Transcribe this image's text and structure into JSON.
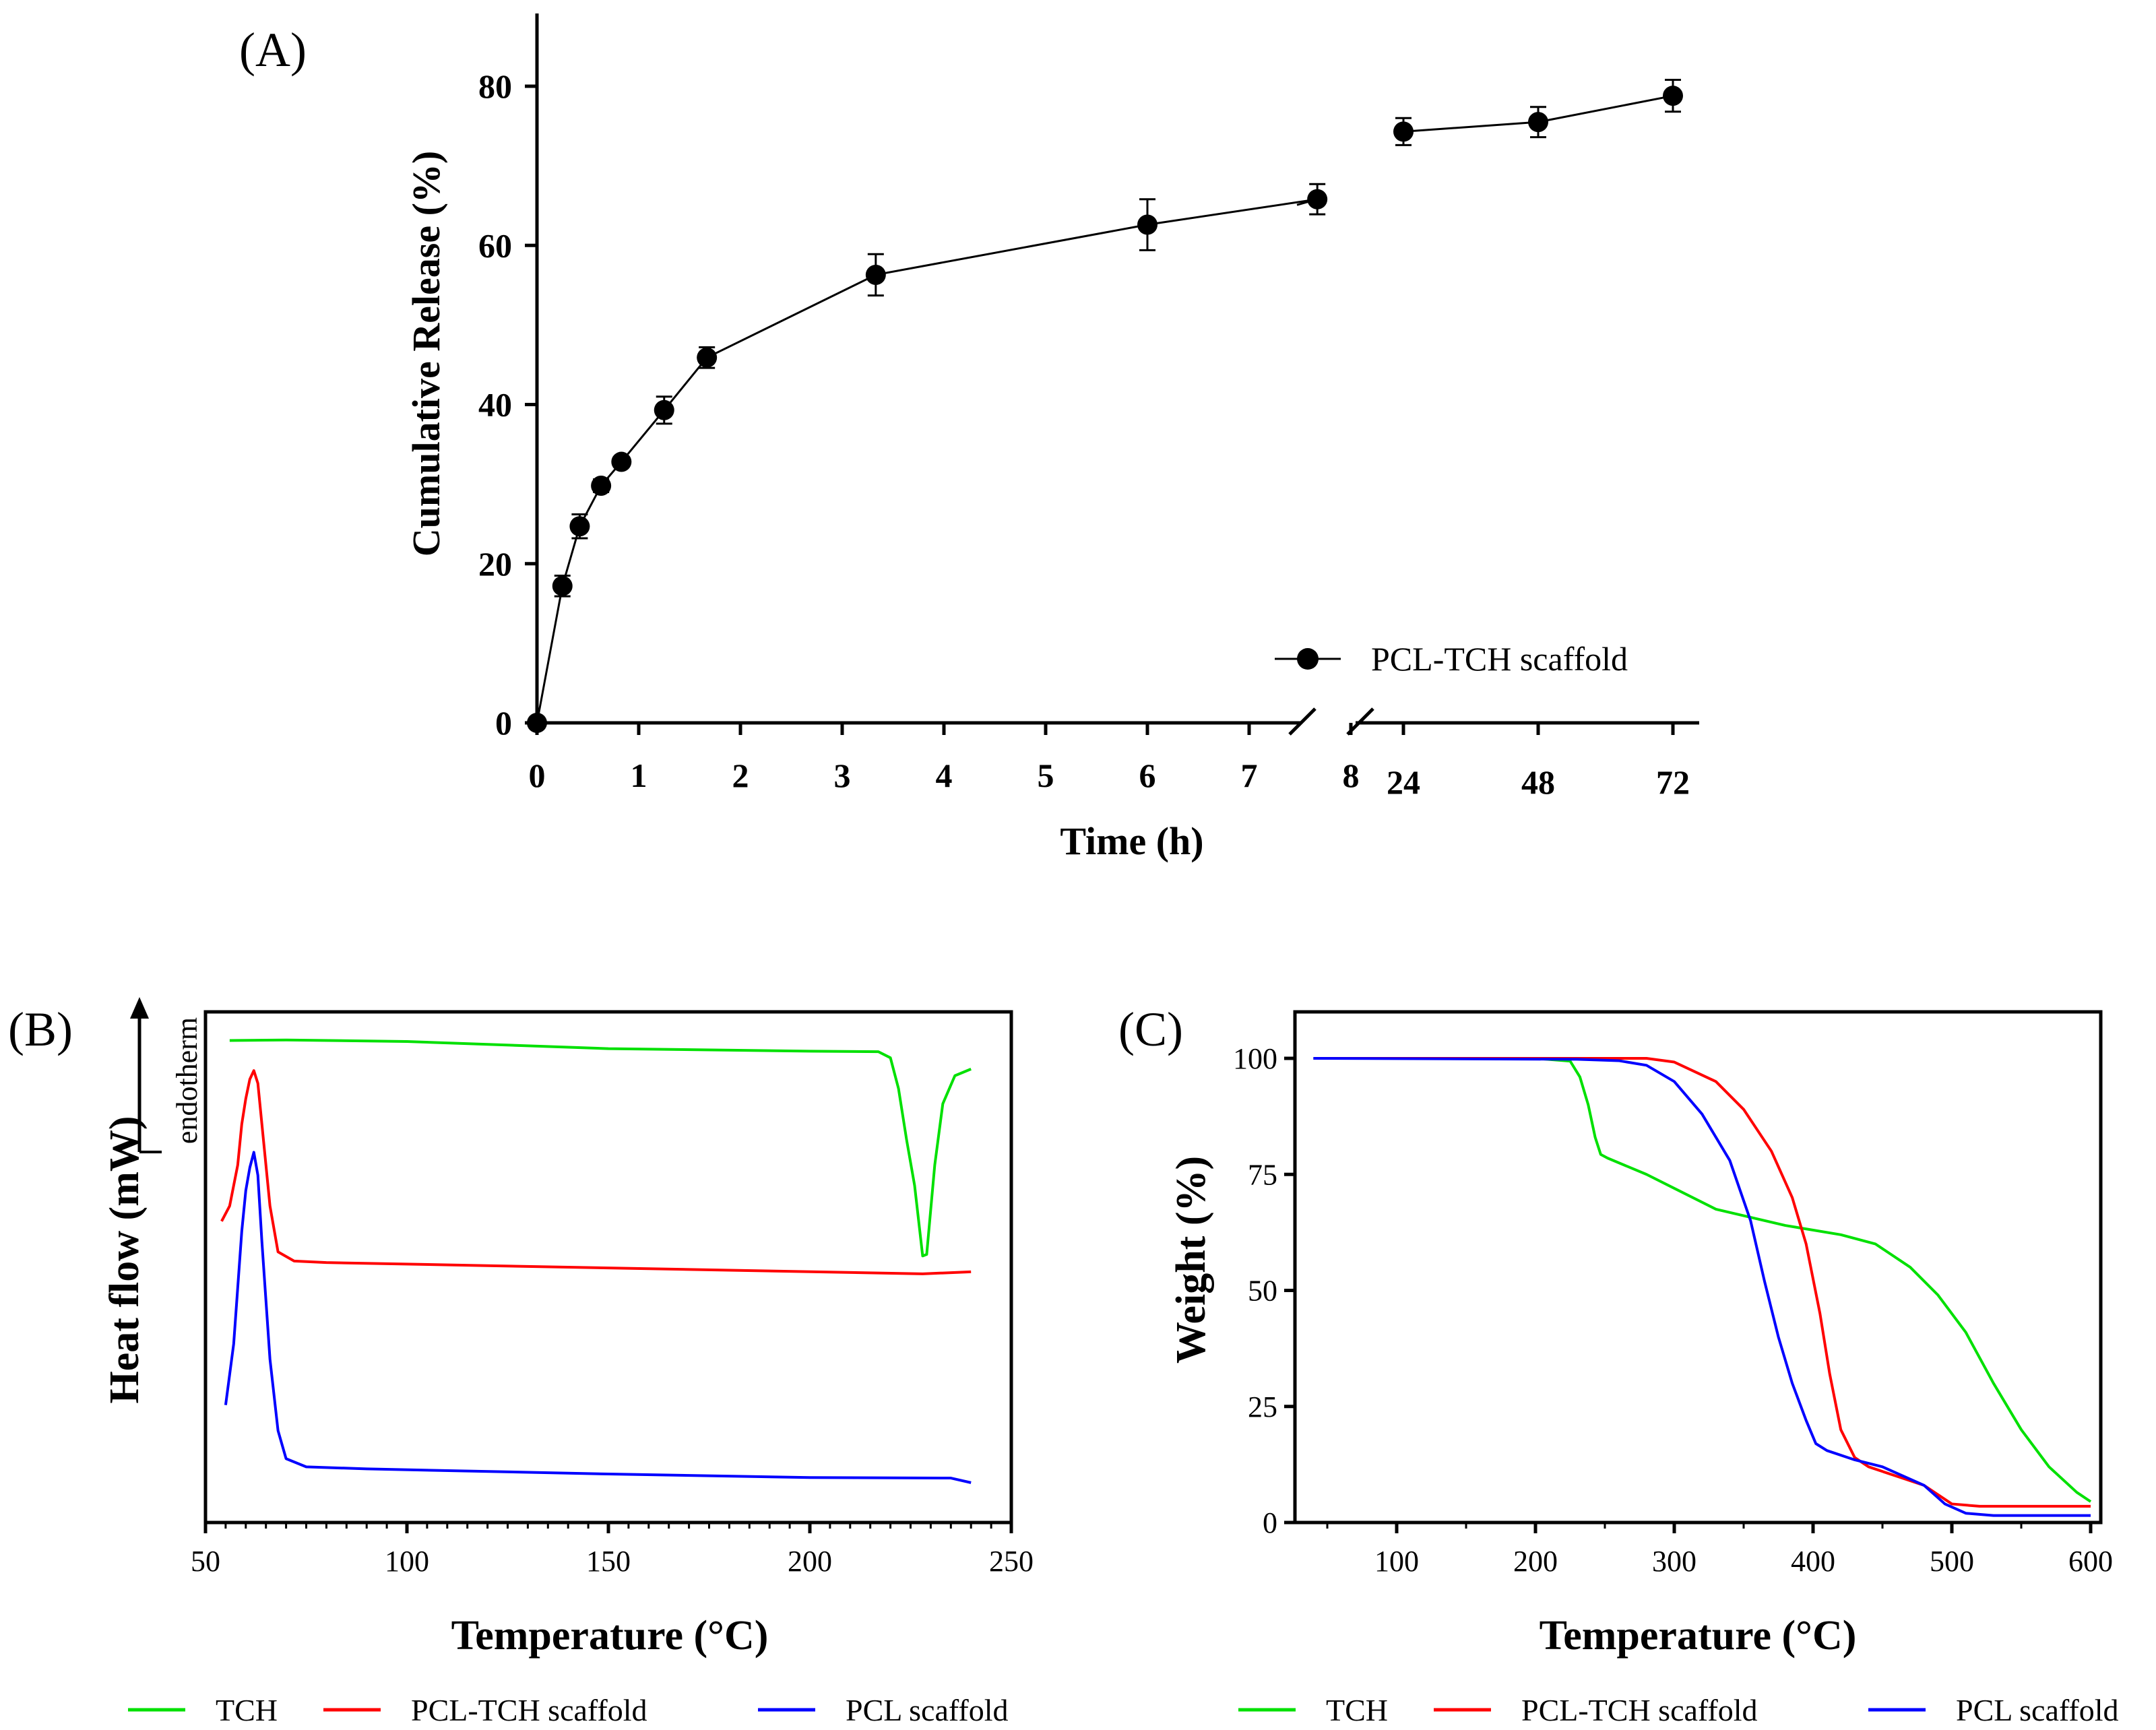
{
  "chart_data": [
    {
      "type": "line",
      "panel_label": "(A)",
      "title": "",
      "xlabel": "Time (h)",
      "ylabel": "Cumulative Release (%)",
      "ylim": [
        0,
        90
      ],
      "yticks": [
        "0",
        "20",
        "40",
        "60",
        "80"
      ],
      "xticks_left": [
        "0",
        "1",
        "2",
        "3",
        "4",
        "5",
        "6",
        "7",
        "8"
      ],
      "xticks_right": [
        "24",
        "48",
        "72"
      ],
      "axis_break": true,
      "legend": [
        "PCL-TCH scaffold"
      ],
      "legend_position": "bottom-right",
      "series": [
        {
          "name": "PCL-TCH scaffold",
          "x": [
            0,
            0.25,
            0.42,
            0.63,
            0.83,
            1.25,
            1.67,
            3.33,
            6,
            7.67,
            24,
            48,
            72
          ],
          "y": [
            0,
            17.2,
            24.7,
            29.8,
            32.8,
            39.3,
            45.9,
            56.3,
            62.6,
            65.8,
            74.3,
            75.5,
            78.8
          ],
          "err": [
            0,
            1.3,
            1.5,
            0.8,
            0.6,
            1.7,
            1.3,
            2.6,
            3.2,
            1.9,
            1.7,
            1.9,
            2.0
          ]
        }
      ]
    },
    {
      "type": "line",
      "panel_label": "(B)",
      "xlabel": "Temperature (°C)",
      "ylabel": "Heat flow (mW)",
      "annotation": "endotherm",
      "xlim": [
        50,
        250
      ],
      "xticks": [
        "50",
        "100",
        "150",
        "200",
        "250"
      ],
      "legend": [
        "TCH",
        "PCL-TCH scaffold",
        "PCL scaffold"
      ],
      "legend_position": "bottom",
      "series": [
        {
          "name": "TCH",
          "color": "#00e000",
          "x": [
            56,
            70,
            100,
            150,
            200,
            217,
            220,
            222,
            224,
            226,
            228,
            229,
            231,
            233,
            236,
            240
          ],
          "y": [
            94.4,
            94.5,
            94.2,
            92.8,
            92.3,
            92.2,
            91.0,
            85.0,
            75.0,
            66.0,
            52.2,
            52.5,
            70.0,
            82.0,
            87.5,
            88.8
          ]
        },
        {
          "name": "PCL-TCH scaffold",
          "color": "#ff0000",
          "x": [
            54,
            56,
            58,
            59,
            60,
            61,
            62,
            63,
            64,
            66,
            68,
            72,
            80,
            120,
            180,
            228,
            240
          ],
          "y": [
            59.0,
            62.0,
            70.0,
            78.0,
            83.0,
            86.8,
            88.5,
            86.0,
            78.0,
            62.0,
            53.0,
            51.2,
            50.9,
            50.3,
            49.4,
            48.7,
            49.1
          ]
        },
        {
          "name": "PCL scaffold",
          "color": "#0000ff",
          "x": [
            55,
            57,
            59,
            60,
            61,
            62,
            63,
            64,
            66,
            68,
            70,
            75,
            90,
            150,
            200,
            235,
            240
          ],
          "y": [
            23.0,
            35.0,
            57.0,
            65.0,
            69.5,
            72.5,
            68.0,
            55.0,
            32.0,
            18.0,
            12.5,
            10.9,
            10.5,
            9.5,
            8.8,
            8.7,
            7.8
          ]
        }
      ]
    },
    {
      "type": "line",
      "panel_label": "(C)",
      "xlabel": "Temperature (°C)",
      "ylabel": "Weight (%)",
      "xlim": [
        30,
        610
      ],
      "ylim": [
        0,
        110
      ],
      "xticks": [
        "100",
        "200",
        "300",
        "400",
        "500",
        "600"
      ],
      "yticks": [
        "0",
        "25",
        "50",
        "75",
        "100"
      ],
      "legend": [
        "TCH",
        "PCL-TCH scaffold",
        "PCL scaffold"
      ],
      "legend_position": "bottom",
      "series": [
        {
          "name": "TCH",
          "color": "#00e000",
          "x": [
            40,
            200,
            225,
            232,
            238,
            243,
            247,
            252,
            280,
            300,
            330,
            380,
            420,
            445,
            470,
            490,
            510,
            530,
            550,
            570,
            590,
            600
          ],
          "y": [
            100,
            100,
            99.4,
            96,
            90,
            83,
            79.3,
            78.5,
            75,
            72,
            67.5,
            64,
            62,
            60,
            55,
            49,
            41,
            30,
            20,
            12,
            6.5,
            4.5
          ]
        },
        {
          "name": "PCL-TCH scaffold",
          "color": "#ff0000",
          "x": [
            40,
            280,
            300,
            330,
            350,
            370,
            385,
            395,
            405,
            412,
            420,
            430,
            440,
            460,
            480,
            490,
            500,
            520,
            600
          ],
          "y": [
            100,
            100,
            99.2,
            95,
            89,
            80,
            70,
            60,
            45,
            32,
            20,
            14,
            12,
            10,
            8,
            6,
            4,
            3.5,
            3.5
          ]
        },
        {
          "name": "PCL scaffold",
          "color": "#0000ff",
          "x": [
            40,
            230,
            260,
            280,
            300,
            320,
            340,
            355,
            365,
            375,
            385,
            395,
            402,
            410,
            430,
            450,
            480,
            495,
            510,
            530,
            600
          ],
          "y": [
            100,
            99.8,
            99.5,
            98.5,
            95,
            88,
            78,
            65,
            52,
            40,
            30,
            22,
            17,
            15.5,
            13.5,
            12,
            8,
            4,
            2,
            1.5,
            1.5
          ]
        }
      ]
    }
  ]
}
